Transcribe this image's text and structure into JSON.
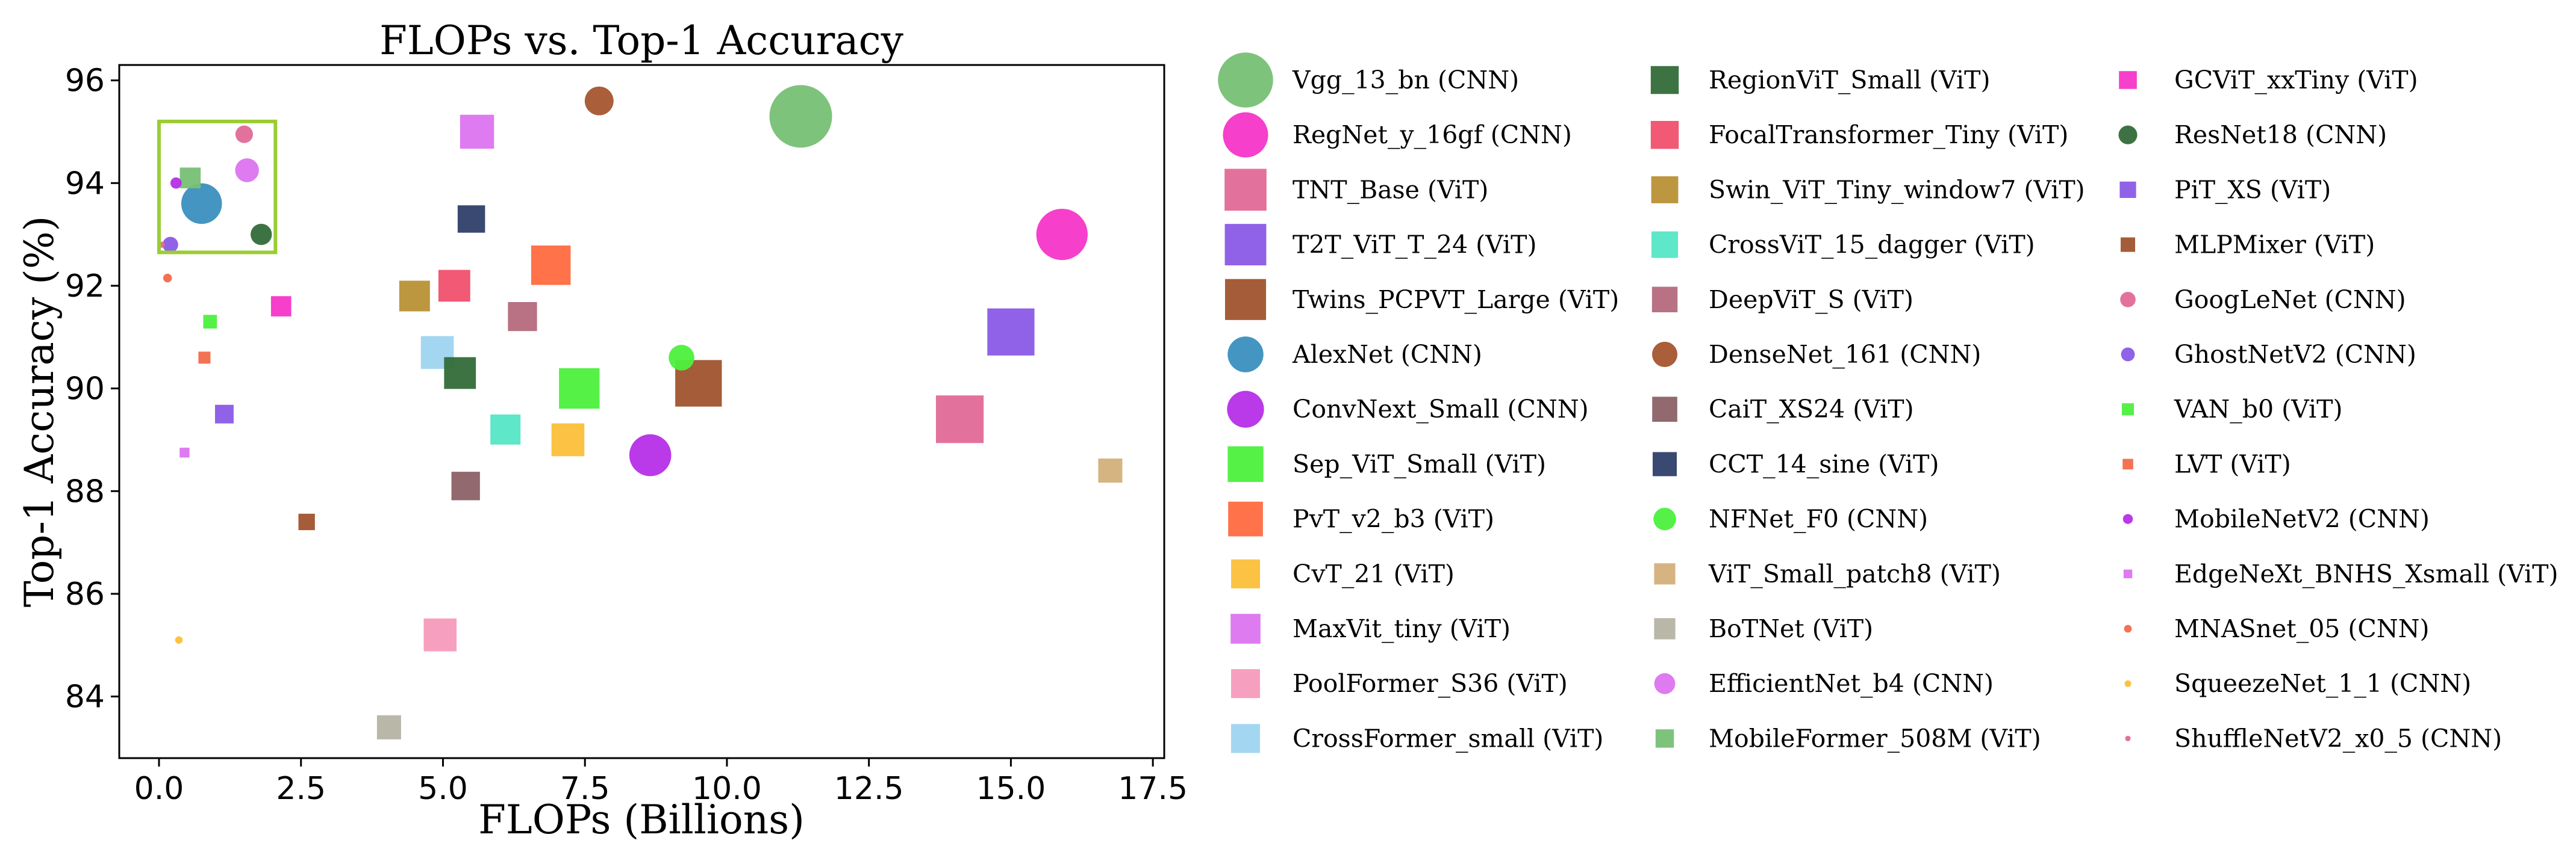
{
  "chart_data": {
    "type": "scatter",
    "title": "FLOPs vs. Top-1 Accuracy",
    "xlabel": "FLOPs (Billions)",
    "ylabel": "Top-1 Accuracy (%)",
    "xlim": [
      -0.7,
      17.7
    ],
    "ylim": [
      82.8,
      96.3
    ],
    "xticks": [
      0.0,
      2.5,
      5.0,
      7.5,
      10.0,
      12.5,
      15.0,
      17.5
    ],
    "xtick_labels": [
      "0.0",
      "2.5",
      "5.0",
      "7.5",
      "10.0",
      "12.5",
      "15.0",
      "17.5"
    ],
    "yticks": [
      84,
      86,
      88,
      90,
      92,
      94,
      96
    ],
    "ytick_labels": [
      "84",
      "86",
      "88",
      "90",
      "92",
      "94",
      "96"
    ],
    "grid": false,
    "legend_placement": "outside-right, 3 columns",
    "highlight_box": {
      "x_range": [
        0.0,
        2.05
      ],
      "y_range": [
        92.65,
        95.2
      ],
      "color": "#9acd32"
    },
    "series": [
      {
        "name": "Vgg_13_bn (CNN)",
        "marker": "circle",
        "color": "#76c075",
        "size": 1.0,
        "x": 11.3,
        "y": 95.3
      },
      {
        "name": "RegNet_y_16gf (CNN)",
        "marker": "circle",
        "color": "#f535c8",
        "size": 0.82,
        "x": 15.9,
        "y": 93.0
      },
      {
        "name": "TNT_Base (ViT)",
        "marker": "square",
        "color": "#e06a97",
        "size": 0.87,
        "x": 14.1,
        "y": 89.4
      },
      {
        "name": "T2T_ViT_T_24 (ViT)",
        "marker": "square",
        "color": "#8a5ae6",
        "size": 0.86,
        "x": 15.0,
        "y": 91.1
      },
      {
        "name": "Twins_PCPVT_Large (ViT)",
        "marker": "square",
        "color": "#a0532d",
        "size": 0.85,
        "x": 9.5,
        "y": 90.1
      },
      {
        "name": "AlexNet (CNN)",
        "marker": "circle",
        "color": "#3a8fbf",
        "size": 0.65,
        "x": 0.75,
        "y": 93.6
      },
      {
        "name": "ConvNext_Small (CNN)",
        "marker": "circle",
        "color": "#b62ee8",
        "size": 0.67,
        "x": 8.65,
        "y": 88.7
      },
      {
        "name": "Sep_ViT_Small (ViT)",
        "marker": "square",
        "color": "#4cf03d",
        "size": 0.74,
        "x": 7.4,
        "y": 90.0
      },
      {
        "name": "PvT_v2_b3 (ViT)",
        "marker": "square",
        "color": "#ff6a40",
        "size": 0.72,
        "x": 6.9,
        "y": 92.4
      },
      {
        "name": "CvT_21 (ViT)",
        "marker": "square",
        "color": "#fbbf3a",
        "size": 0.6,
        "x": 7.2,
        "y": 89.0
      },
      {
        "name": "MaxVit_tiny (ViT)",
        "marker": "square",
        "color": "#dc74f0",
        "size": 0.62,
        "x": 5.6,
        "y": 95.0
      },
      {
        "name": "PoolFormer_S36 (ViT)",
        "marker": "square",
        "color": "#f79aba",
        "size": 0.6,
        "x": 4.95,
        "y": 85.2
      },
      {
        "name": "CrossFormer_small (ViT)",
        "marker": "square",
        "color": "#9ed4f0",
        "size": 0.6,
        "x": 4.9,
        "y": 90.7
      },
      {
        "name": "RegionViT_Small (ViT)",
        "marker": "square",
        "color": "#336b39",
        "size": 0.58,
        "x": 5.3,
        "y": 90.3
      },
      {
        "name": "FocalTransformer_Tiny (ViT)",
        "marker": "square",
        "color": "#f0506e",
        "size": 0.58,
        "x": 5.2,
        "y": 92.0
      },
      {
        "name": "Swin_ViT_Tiny_window7 (ViT)",
        "marker": "square",
        "color": "#b89135",
        "size": 0.56,
        "x": 4.5,
        "y": 91.8
      },
      {
        "name": "CrossViT_15_dagger (ViT)",
        "marker": "square",
        "color": "#55e6c5",
        "size": 0.55,
        "x": 6.1,
        "y": 89.2
      },
      {
        "name": "DeepViT_S (ViT)",
        "marker": "square",
        "color": "#b46a7d",
        "size": 0.53,
        "x": 6.4,
        "y": 91.4
      },
      {
        "name": "DenseNet_161 (CNN)",
        "marker": "circle",
        "color": "#a5552f",
        "size": 0.46,
        "x": 7.75,
        "y": 95.6
      },
      {
        "name": "CaiT_XS24 (ViT)",
        "marker": "square",
        "color": "#8b6166",
        "size": 0.52,
        "x": 5.4,
        "y": 88.1
      },
      {
        "name": "CCT_14_sine (ViT)",
        "marker": "square",
        "color": "#2f3f69",
        "size": 0.5,
        "x": 5.5,
        "y": 93.3
      },
      {
        "name": "NFNet_F0 (CNN)",
        "marker": "circle",
        "color": "#4cf03d",
        "size": 0.41,
        "x": 9.2,
        "y": 90.6
      },
      {
        "name": "ViT_Small_patch8 (ViT)",
        "marker": "square",
        "color": "#d4b07a",
        "size": 0.44,
        "x": 16.75,
        "y": 88.4
      },
      {
        "name": "BoTNet (ViT)",
        "marker": "square",
        "color": "#b5b3a3",
        "size": 0.44,
        "x": 4.05,
        "y": 83.4
      },
      {
        "name": "EfficientNet_b4 (CNN)",
        "marker": "circle",
        "color": "#dc74f0",
        "size": 0.38,
        "x": 1.55,
        "y": 94.25
      },
      {
        "name": "MobileFormer_508M (ViT)",
        "marker": "square",
        "color": "#76c075",
        "size": 0.38,
        "x": 0.55,
        "y": 94.1
      },
      {
        "name": "GCViT_xxTiny (ViT)",
        "marker": "square",
        "color": "#f535c8",
        "size": 0.37,
        "x": 2.15,
        "y": 91.6
      },
      {
        "name": "ResNet18 (CNN)",
        "marker": "circle",
        "color": "#336b39",
        "size": 0.34,
        "x": 1.8,
        "y": 93.0
      },
      {
        "name": "PiT_XS (ViT)",
        "marker": "square",
        "color": "#8a5ae6",
        "size": 0.34,
        "x": 1.15,
        "y": 89.5
      },
      {
        "name": "MLPMixer (ViT)",
        "marker": "square",
        "color": "#a0532d",
        "size": 0.3,
        "x": 2.6,
        "y": 87.4
      },
      {
        "name": "GoogLeNet (CNN)",
        "marker": "circle",
        "color": "#e06a97",
        "size": 0.28,
        "x": 1.5,
        "y": 94.95
      },
      {
        "name": "GhostNetV2 (CNN)",
        "marker": "circle",
        "color": "#8a5ae6",
        "size": 0.25,
        "x": 0.2,
        "y": 92.8
      },
      {
        "name": "VAN_b0 (ViT)",
        "marker": "square",
        "color": "#4cf03d",
        "size": 0.25,
        "x": 0.9,
        "y": 91.3
      },
      {
        "name": "LVT (ViT)",
        "marker": "square",
        "color": "#f06b4a",
        "size": 0.22,
        "x": 0.8,
        "y": 90.6
      },
      {
        "name": "MobileNetV2 (CNN)",
        "marker": "circle",
        "color": "#b62ee8",
        "size": 0.18,
        "x": 0.3,
        "y": 94.0
      },
      {
        "name": "EdgeNeXt_BNHS_Xsmall (ViT)",
        "marker": "square",
        "color": "#dc74f0",
        "size": 0.18,
        "x": 0.45,
        "y": 88.75
      },
      {
        "name": "MNASnet_05 (CNN)",
        "marker": "circle",
        "color": "#f06b4a",
        "size": 0.14,
        "x": 0.15,
        "y": 92.15
      },
      {
        "name": "SqueezeNet_1_1 (CNN)",
        "marker": "circle",
        "color": "#fbbf3a",
        "size": 0.12,
        "x": 0.35,
        "y": 85.1
      },
      {
        "name": "ShuffleNetV2_x0_5 (CNN)",
        "marker": "circle",
        "color": "#e06a97",
        "size": 0.1,
        "x": 0.05,
        "y": 92.8
      }
    ]
  }
}
